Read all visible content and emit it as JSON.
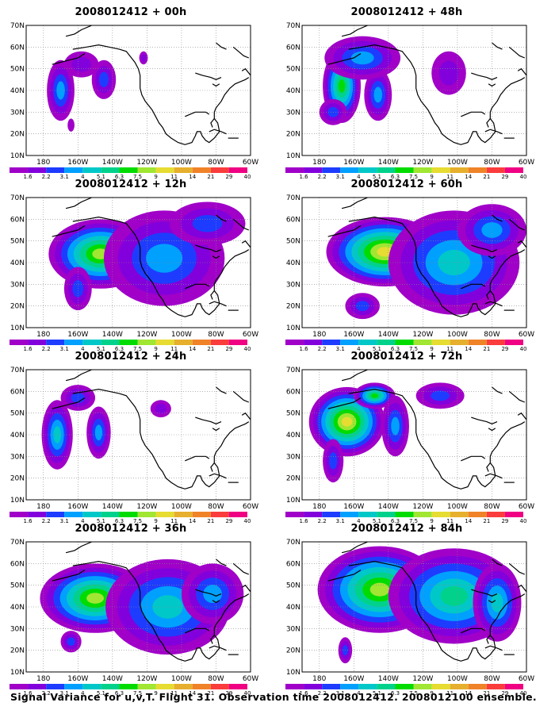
{
  "colorbar": {
    "labels": [
      "1.6",
      "2.2",
      "3.1",
      "4",
      "5.1",
      "6.3",
      "7.5",
      "9",
      "11",
      "14",
      "21",
      "29",
      "40"
    ],
    "colors": [
      "#a000c8",
      "#8200dc",
      "#1e3cff",
      "#00a0ff",
      "#00c8c8",
      "#00d28c",
      "#00dc00",
      "#a0e632",
      "#e6dc32",
      "#e6af2d",
      "#f08228",
      "#fa3c3c",
      "#f00082"
    ]
  },
  "axes": {
    "x_labels": [
      "180",
      "160W",
      "140W",
      "120W",
      "100W",
      "80W",
      "60W"
    ],
    "y_labels": [
      "10N",
      "20N",
      "30N",
      "40N",
      "50N",
      "60N",
      "70N"
    ]
  },
  "panels": [
    {
      "title": "2008012412 + 00h",
      "level": 0
    },
    {
      "title": "2008012412 + 48h",
      "level": 4
    },
    {
      "title": "2008012412 + 12h",
      "level": 1
    },
    {
      "title": "2008012412 + 60h",
      "level": 5
    },
    {
      "title": "2008012412 + 24h",
      "level": 2
    },
    {
      "title": "2008012412 + 72h",
      "level": 6
    },
    {
      "title": "2008012412 + 36h",
      "level": 3
    },
    {
      "title": "2008012412 + 84h",
      "level": 7
    }
  ],
  "footer": "Signal Variance for u,v,T. Flight 31. Observation time 2008012412. 2008012100 ensemble."
}
